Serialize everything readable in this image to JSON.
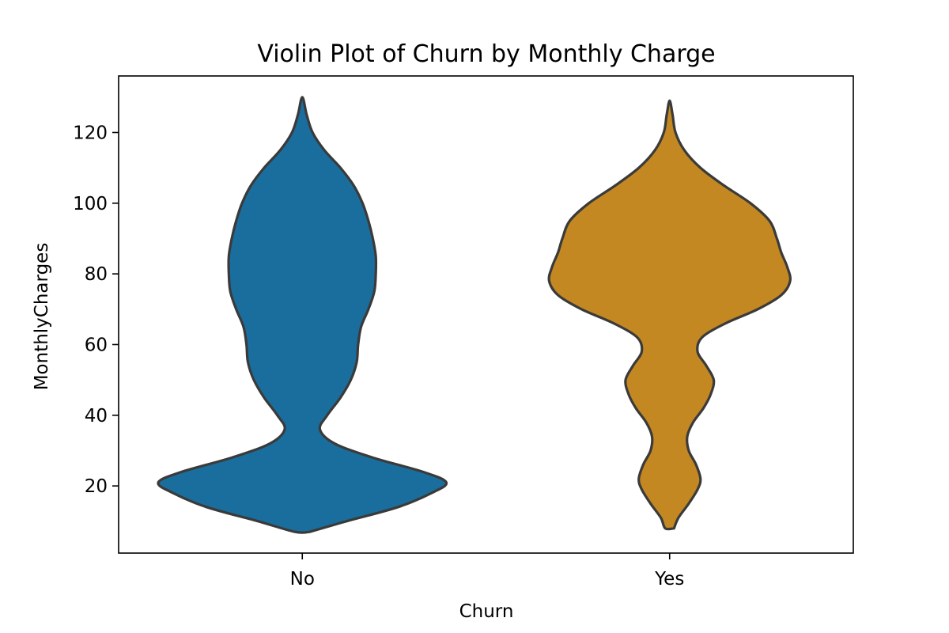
{
  "chart_data": {
    "type": "violin",
    "title": "Violin Plot of Churn by Monthly Charge",
    "xlabel": "Churn",
    "ylabel": "MonthlyCharges",
    "categories": [
      "No",
      "Yes"
    ],
    "ylim": [
      1,
      136
    ],
    "yticks": [
      20,
      40,
      60,
      80,
      100,
      120
    ],
    "grid": false,
    "legend": "none",
    "colors": {
      "No": "#1a6e9d",
      "Yes": "#c38822",
      "outline": "#3a3a3a"
    },
    "series": [
      {
        "name": "No",
        "density": [
          {
            "y": 7,
            "w": 0.05
          },
          {
            "y": 10,
            "w": 0.3
          },
          {
            "y": 14,
            "w": 0.65
          },
          {
            "y": 18,
            "w": 0.88
          },
          {
            "y": 21,
            "w": 0.98
          },
          {
            "y": 24,
            "w": 0.82
          },
          {
            "y": 28,
            "w": 0.48
          },
          {
            "y": 32,
            "w": 0.22
          },
          {
            "y": 36,
            "w": 0.12
          },
          {
            "y": 40,
            "w": 0.17
          },
          {
            "y": 45,
            "w": 0.26
          },
          {
            "y": 50,
            "w": 0.33
          },
          {
            "y": 55,
            "w": 0.37
          },
          {
            "y": 60,
            "w": 0.38
          },
          {
            "y": 65,
            "w": 0.4
          },
          {
            "y": 70,
            "w": 0.45
          },
          {
            "y": 75,
            "w": 0.49
          },
          {
            "y": 80,
            "w": 0.5
          },
          {
            "y": 85,
            "w": 0.5
          },
          {
            "y": 90,
            "w": 0.48
          },
          {
            "y": 95,
            "w": 0.45
          },
          {
            "y": 100,
            "w": 0.41
          },
          {
            "y": 105,
            "w": 0.35
          },
          {
            "y": 110,
            "w": 0.26
          },
          {
            "y": 115,
            "w": 0.15
          },
          {
            "y": 120,
            "w": 0.07
          },
          {
            "y": 125,
            "w": 0.03
          },
          {
            "y": 130,
            "w": 0.0
          }
        ]
      },
      {
        "name": "Yes",
        "density": [
          {
            "y": 8,
            "w": 0.03
          },
          {
            "y": 11,
            "w": 0.06
          },
          {
            "y": 15,
            "w": 0.13
          },
          {
            "y": 19,
            "w": 0.19
          },
          {
            "y": 22,
            "w": 0.21
          },
          {
            "y": 26,
            "w": 0.18
          },
          {
            "y": 30,
            "w": 0.13
          },
          {
            "y": 34,
            "w": 0.12
          },
          {
            "y": 38,
            "w": 0.16
          },
          {
            "y": 42,
            "w": 0.23
          },
          {
            "y": 46,
            "w": 0.28
          },
          {
            "y": 50,
            "w": 0.3
          },
          {
            "y": 54,
            "w": 0.25
          },
          {
            "y": 58,
            "w": 0.19
          },
          {
            "y": 62,
            "w": 0.22
          },
          {
            "y": 66,
            "w": 0.38
          },
          {
            "y": 70,
            "w": 0.6
          },
          {
            "y": 74,
            "w": 0.76
          },
          {
            "y": 78,
            "w": 0.82
          },
          {
            "y": 82,
            "w": 0.8
          },
          {
            "y": 86,
            "w": 0.76
          },
          {
            "y": 90,
            "w": 0.73
          },
          {
            "y": 95,
            "w": 0.68
          },
          {
            "y": 100,
            "w": 0.55
          },
          {
            "y": 105,
            "w": 0.37
          },
          {
            "y": 110,
            "w": 0.21
          },
          {
            "y": 115,
            "w": 0.1
          },
          {
            "y": 120,
            "w": 0.04
          },
          {
            "y": 125,
            "w": 0.02
          },
          {
            "y": 129,
            "w": 0.0
          }
        ]
      }
    ]
  }
}
